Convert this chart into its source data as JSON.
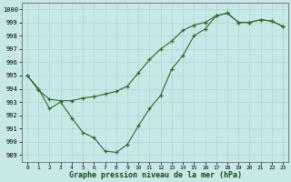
{
  "x_values": [
    0,
    1,
    2,
    3,
    4,
    5,
    6,
    7,
    8,
    9,
    10,
    11,
    12,
    13,
    14,
    15,
    16,
    17,
    18,
    19,
    20,
    21,
    22,
    23
  ],
  "line1": [
    995,
    993.9,
    993.2,
    993.1,
    993.1,
    993.3,
    993.4,
    993.6,
    993.8,
    994.2,
    995.2,
    996.2,
    997.0,
    997.6,
    998.4,
    998.8,
    999.0,
    999.5,
    999.7,
    999.0,
    999.0,
    999.2,
    999.1,
    998.7
  ],
  "line2": [
    995,
    994.0,
    992.5,
    993.0,
    991.8,
    990.7,
    990.3,
    989.3,
    989.2,
    989.8,
    991.2,
    992.5,
    993.5,
    995.5,
    996.5,
    998.0,
    998.5,
    999.5,
    999.7,
    999.0,
    999.0,
    999.2,
    999.1,
    998.7
  ],
  "line_color": "#2d6a2d",
  "bg_color": "#c8e8e8",
  "grid_color": "#aed4d4",
  "ylim": [
    988.5,
    1000.5
  ],
  "yticks": [
    989,
    990,
    991,
    992,
    993,
    994,
    995,
    996,
    997,
    998,
    999,
    1000
  ],
  "xlabel": "Graphe pression niveau de la mer (hPa)",
  "marker": "+"
}
